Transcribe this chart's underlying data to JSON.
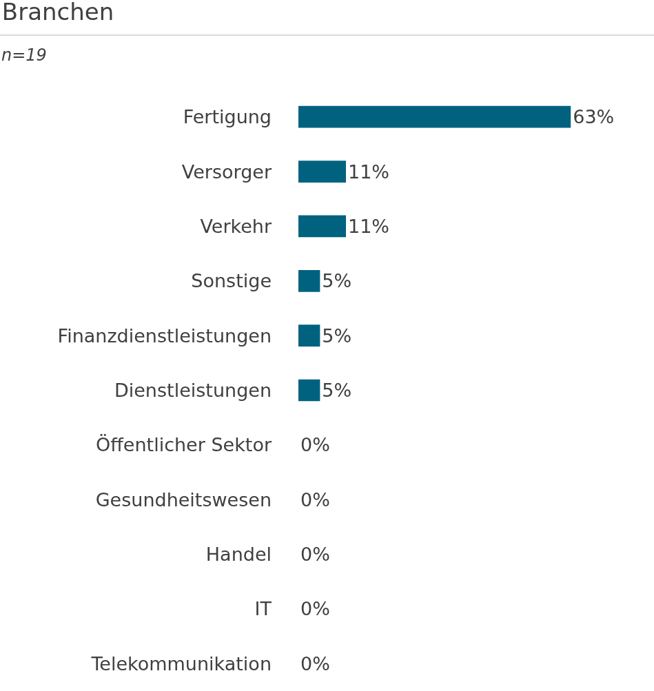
{
  "chart_data": {
    "type": "bar",
    "orientation": "horizontal",
    "title": "Branchen",
    "subtitle": "n=19",
    "categories": [
      "Fertigung",
      "Versorger",
      "Verkehr",
      "Sonstige",
      "Finanzdienstleistungen",
      "Dienstleistungen",
      "Öffentlicher Sektor",
      "Gesundheitswesen",
      "Handel",
      "IT",
      "Telekommunikation"
    ],
    "values": [
      63,
      11,
      11,
      5,
      5,
      5,
      0,
      0,
      0,
      0,
      0
    ],
    "value_labels": [
      "63%",
      "11%",
      "11%",
      "5%",
      "5%",
      "5%",
      "0%",
      "0%",
      "0%",
      "0%",
      "0%"
    ],
    "color": "#00627f",
    "tick_labels": "y"
  }
}
